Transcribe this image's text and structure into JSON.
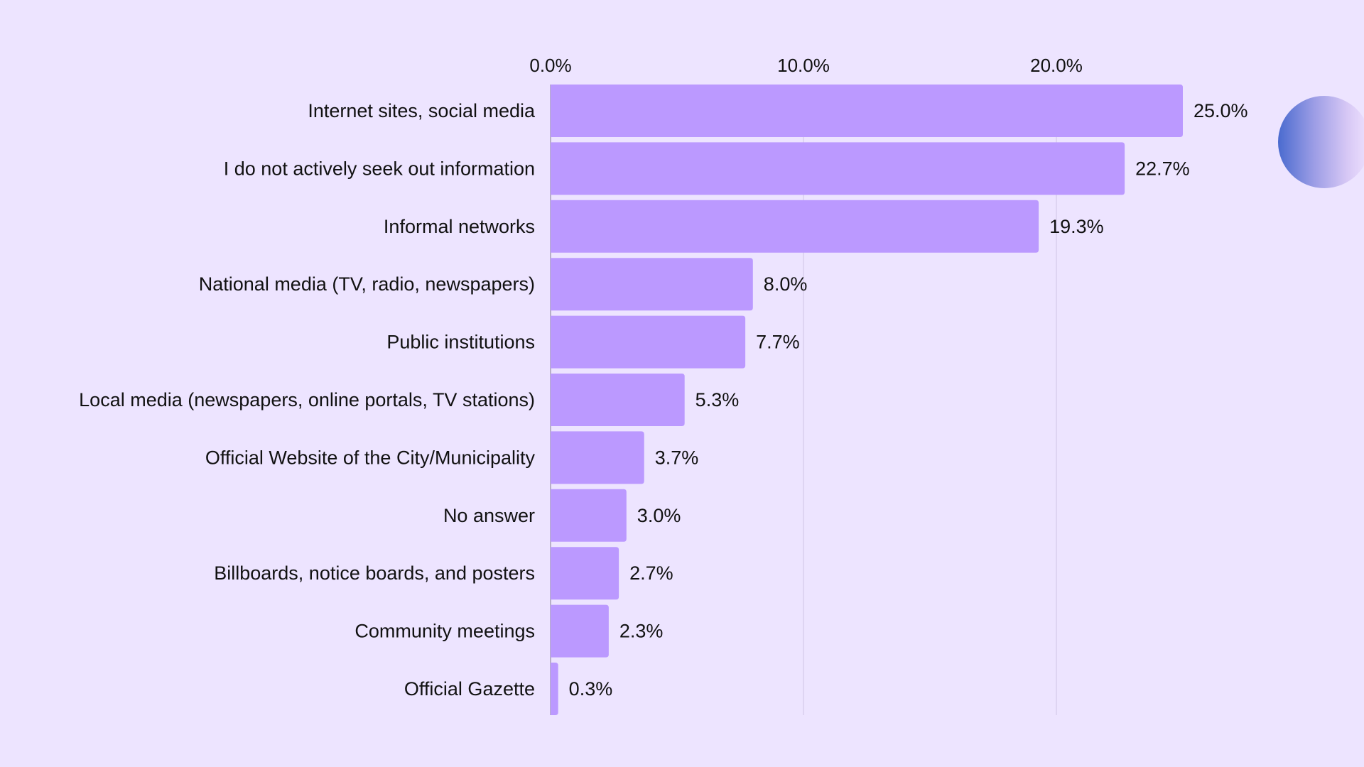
{
  "chart_data": {
    "type": "bar",
    "orientation": "horizontal",
    "title": "",
    "xlabel": "",
    "ylabel": "",
    "xlim": [
      0,
      26
    ],
    "grid": true,
    "x_ticks": [
      "0.0%",
      "10.0%",
      "20.0%"
    ],
    "x_tick_values": [
      0,
      10,
      20
    ],
    "categories": [
      "Internet sites, social media",
      "I do not actively seek out information",
      "Informal networks",
      "National media (TV, radio, newspapers)",
      "Public institutions",
      "Local media (newspapers, online portals, TV stations)",
      "Official Website of the City/Municipality",
      "No answer",
      "Billboards, notice boards, and posters",
      "Community meetings",
      "Official Gazette"
    ],
    "values": [
      25.0,
      22.7,
      19.3,
      8.0,
      7.7,
      5.3,
      3.7,
      3.0,
      2.7,
      2.3,
      0.3
    ],
    "value_labels": [
      "25.0%",
      "22.7%",
      "19.3%",
      "8.0%",
      "7.7%",
      "5.3%",
      "3.7%",
      "3.0%",
      "2.7%",
      "2.3%",
      "0.3%"
    ],
    "colors": {
      "bar": "#bb99ff",
      "background": "#ede4ff",
      "grid": "#d9cfee"
    }
  }
}
